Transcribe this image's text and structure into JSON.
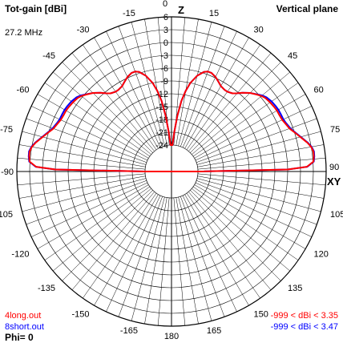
{
  "header": {
    "title": "Tot-gain [dBi]",
    "plane": "Vertical plane",
    "frequency": "27.2 MHz"
  },
  "axes": {
    "top_label": "Z",
    "right_label": "XY"
  },
  "legend": [
    {
      "file": "4long.out",
      "range": "-999 < dBi < 3.35",
      "color": "#ff0000"
    },
    {
      "file": "8short.out",
      "range": "-999 < dBi < 3.47",
      "color": "#0000ff"
    }
  ],
  "footer": {
    "phi": "Phi= 0"
  },
  "chart_data": {
    "type": "polar-line",
    "radial_ticks": [
      "6",
      "3",
      "0",
      "-3",
      "-6",
      "-9",
      "-12",
      "-15",
      "-18",
      "-21",
      "-24"
    ],
    "radial_values": [
      6,
      3,
      0,
      -3,
      -6,
      -9,
      -12,
      -15,
      -18,
      -21,
      -24
    ],
    "radial_range": [
      -24,
      6
    ],
    "angle_labels": [
      {
        "deg": 0,
        "text": "0"
      },
      {
        "deg": 15,
        "text": "15"
      },
      {
        "deg": 30,
        "text": "30"
      },
      {
        "deg": 45,
        "text": "45"
      },
      {
        "deg": 60,
        "text": "60"
      },
      {
        "deg": 75,
        "text": "75"
      },
      {
        "deg": 90,
        "text": "90"
      },
      {
        "deg": 105,
        "text": "105"
      },
      {
        "deg": 120,
        "text": "120"
      },
      {
        "deg": 135,
        "text": "135"
      },
      {
        "deg": 150,
        "text": "150"
      },
      {
        "deg": 165,
        "text": "165"
      },
      {
        "deg": 180,
        "text": "180"
      },
      {
        "deg": -165,
        "text": "-165"
      },
      {
        "deg": -150,
        "text": "-150"
      },
      {
        "deg": -135,
        "text": "-135"
      },
      {
        "deg": -120,
        "text": "-120"
      },
      {
        "deg": -105,
        "text": "-105"
      },
      {
        "deg": -90,
        "text": "-90"
      },
      {
        "deg": -75,
        "text": "-75"
      },
      {
        "deg": -60,
        "text": "-60"
      },
      {
        "deg": -45,
        "text": "-45"
      },
      {
        "deg": -30,
        "text": "-30"
      },
      {
        "deg": -15,
        "text": "-15"
      }
    ],
    "series": [
      {
        "name": "4long.out",
        "color": "#ff0000",
        "angles": [
          0,
          2,
          4,
          6,
          8,
          10,
          12,
          15,
          18,
          20,
          22,
          25,
          28,
          30,
          33,
          35,
          38,
          40,
          42,
          45,
          48,
          50,
          52,
          55,
          58,
          60,
          62,
          65,
          67,
          70,
          72,
          75,
          78,
          80,
          82,
          84,
          86,
          88,
          89,
          90
        ],
        "gain_dbi": [
          -24,
          -24,
          -21,
          -17,
          -13.5,
          -11,
          -9,
          -7,
          -5.7,
          -5.3,
          -5.3,
          -5.8,
          -6.6,
          -7.1,
          -7.4,
          -7.4,
          -7.0,
          -6.3,
          -5.4,
          -4.2,
          -3.3,
          -2.7,
          -2.3,
          -2.0,
          -1.8,
          -1.7,
          -1.7,
          -1.6,
          -1.3,
          -0.8,
          -0.1,
          1.0,
          2.3,
          3.0,
          3.35,
          3.3,
          3.1,
          1.5,
          -3,
          -24
        ]
      },
      {
        "name": "8short.out",
        "color": "#0000ff",
        "angles": [
          0,
          2,
          4,
          6,
          8,
          10,
          12,
          15,
          18,
          20,
          22,
          25,
          28,
          30,
          33,
          35,
          38,
          40,
          42,
          45,
          48,
          50,
          52,
          55,
          58,
          60,
          62,
          65,
          67,
          70,
          72,
          75,
          78,
          80,
          82,
          84,
          86,
          88,
          89,
          90
        ],
        "gain_dbi": [
          -24,
          -24,
          -21,
          -17,
          -13.5,
          -11,
          -9,
          -7,
          -5.7,
          -5.3,
          -5.3,
          -5.8,
          -6.6,
          -7.1,
          -7.4,
          -7.4,
          -7.0,
          -6.3,
          -5.4,
          -4.2,
          -3.2,
          -2.5,
          -2.0,
          -1.6,
          -1.4,
          -1.3,
          -1.3,
          -1.3,
          -1.1,
          -0.6,
          0.0,
          1.1,
          2.4,
          3.1,
          3.47,
          3.4,
          3.2,
          1.6,
          -3,
          -24
        ]
      }
    ]
  }
}
